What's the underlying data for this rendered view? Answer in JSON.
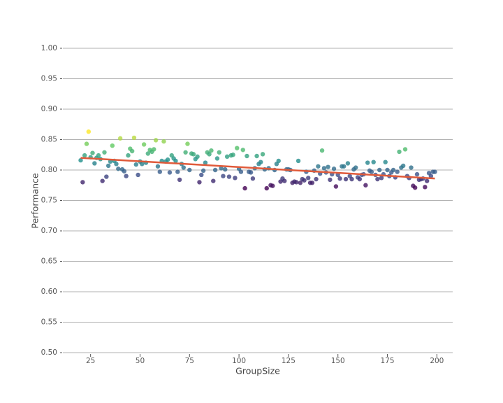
{
  "chart_data": {
    "type": "scatter",
    "x_label": "GroupSize",
    "y_label": "Performance",
    "x": [
      20,
      21,
      22,
      23,
      24,
      25,
      26,
      27,
      28,
      29,
      30,
      31,
      32,
      33,
      34,
      35,
      36,
      37,
      38,
      39,
      40,
      41,
      42,
      43,
      44,
      45,
      46,
      47,
      48,
      49,
      50,
      51,
      52,
      53,
      54,
      55,
      56,
      57,
      58,
      59,
      60,
      61,
      62,
      63,
      64,
      65,
      66,
      67,
      68,
      69,
      70,
      71,
      72,
      73,
      74,
      75,
      76,
      77,
      78,
      79,
      80,
      81,
      82,
      83,
      84,
      85,
      86,
      87,
      88,
      89,
      90,
      91,
      92,
      93,
      94,
      95,
      96,
      97,
      98,
      99,
      100,
      101,
      102,
      103,
      104,
      105,
      106,
      107,
      108,
      109,
      110,
      111,
      112,
      113,
      114,
      115,
      116,
      117,
      118,
      119,
      120,
      121,
      122,
      123,
      124,
      125,
      126,
      127,
      128,
      129,
      130,
      131,
      132,
      133,
      134,
      135,
      136,
      137,
      138,
      139,
      140,
      141,
      142,
      143,
      144,
      145,
      146,
      147,
      148,
      149,
      150,
      151,
      152,
      153,
      154,
      155,
      156,
      157,
      158,
      159,
      160,
      161,
      162,
      163,
      164,
      165,
      166,
      167,
      168,
      169,
      170,
      171,
      172,
      173,
      174,
      175,
      176,
      177,
      178,
      179,
      180,
      181,
      182,
      183,
      184,
      185,
      186,
      187,
      188,
      189,
      190,
      191,
      192,
      193,
      194,
      195,
      196,
      197,
      198,
      199
    ],
    "values": [
      0.816,
      0.78,
      0.824,
      0.843,
      0.863,
      0.821,
      0.828,
      0.811,
      0.82,
      0.824,
      0.818,
      0.782,
      0.829,
      0.789,
      0.807,
      0.814,
      0.84,
      0.815,
      0.81,
      0.802,
      0.852,
      0.801,
      0.798,
      0.79,
      0.824,
      0.835,
      0.831,
      0.853,
      0.809,
      0.792,
      0.814,
      0.81,
      0.842,
      0.812,
      0.827,
      0.833,
      0.83,
      0.834,
      0.849,
      0.806,
      0.797,
      0.815,
      0.847,
      0.814,
      0.817,
      0.796,
      0.824,
      0.819,
      0.815,
      0.797,
      0.784,
      0.81,
      0.804,
      0.829,
      0.843,
      0.8,
      0.827,
      0.826,
      0.818,
      0.822,
      0.78,
      0.792,
      0.799,
      0.812,
      0.829,
      0.826,
      0.832,
      0.782,
      0.8,
      0.819,
      0.829,
      0.803,
      0.79,
      0.801,
      0.822,
      0.789,
      0.824,
      0.825,
      0.787,
      0.836,
      0.802,
      0.797,
      0.833,
      0.77,
      0.823,
      0.797,
      0.796,
      0.786,
      0.803,
      0.823,
      0.81,
      0.813,
      0.826,
      0.801,
      0.77,
      0.803,
      0.775,
      0.774,
      0.8,
      0.81,
      0.815,
      0.781,
      0.786,
      0.782,
      0.801,
      0.801,
      0.8,
      0.779,
      0.781,
      0.78,
      0.815,
      0.779,
      0.785,
      0.783,
      0.797,
      0.787,
      0.779,
      0.779,
      0.799,
      0.785,
      0.806,
      0.794,
      0.832,
      0.803,
      0.796,
      0.805,
      0.784,
      0.793,
      0.802,
      0.773,
      0.792,
      0.786,
      0.806,
      0.806,
      0.785,
      0.811,
      0.79,
      0.785,
      0.801,
      0.804,
      0.788,
      0.785,
      0.792,
      0.793,
      0.775,
      0.812,
      0.799,
      0.797,
      0.813,
      0.792,
      0.785,
      0.8,
      0.787,
      0.793,
      0.813,
      0.8,
      0.79,
      0.796,
      0.8,
      0.788,
      0.797,
      0.83,
      0.804,
      0.807,
      0.834,
      0.79,
      0.787,
      0.804,
      0.774,
      0.771,
      0.793,
      0.784,
      0.785,
      0.786,
      0.772,
      0.782,
      0.795,
      0.79,
      0.797,
      0.797
    ],
    "colormap": [
      "#440154",
      "#3b528b",
      "#21918c",
      "#5ec962",
      "#fde725"
    ],
    "trend": {
      "x": [
        20,
        199
      ],
      "values": [
        0.82,
        0.786
      ],
      "color": "#e05a3a"
    },
    "xlim": [
      11,
      208
    ],
    "ylim": [
      0.5,
      1.0
    ],
    "xticks": [
      25,
      50,
      75,
      100,
      125,
      150,
      175,
      200
    ],
    "yticks": [
      {
        "value": 0.5,
        "label": "0.50"
      },
      0.55,
      {
        "value": 0.6,
        "label": "0.60"
      },
      0.65,
      {
        "value": 0.7,
        "label": "0.70"
      },
      0.75,
      {
        "value": 0.8,
        "label": "0.80"
      },
      0.85,
      {
        "value": 0.9,
        "label": "0.90"
      },
      0.95,
      {
        "value": 1.0,
        "label": "1.00"
      }
    ],
    "grid": true
  }
}
